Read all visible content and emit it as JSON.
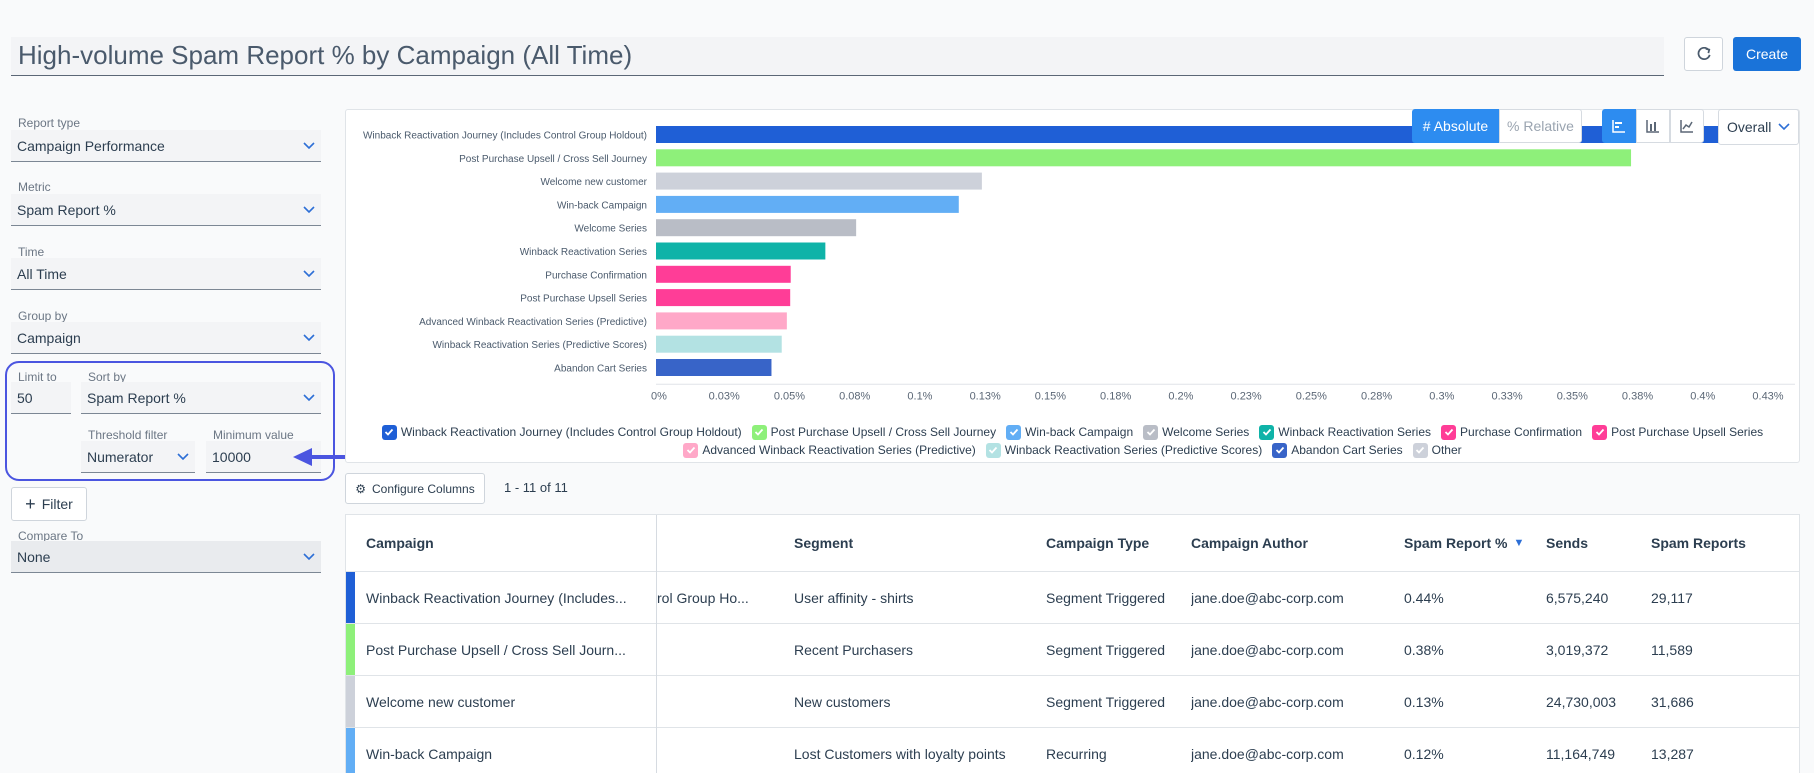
{
  "header": {
    "title": "High-volume Spam Report % by Campaign (All Time)",
    "create_label": "Create"
  },
  "left_panel": {
    "report_type": {
      "label": "Report type",
      "value": "Campaign Performance"
    },
    "metric": {
      "label": "Metric",
      "value": "Spam Report %"
    },
    "time": {
      "label": "Time",
      "value": "All Time"
    },
    "group_by": {
      "label": "Group by",
      "value": "Campaign"
    },
    "limit": {
      "label": "Limit to",
      "value": "50"
    },
    "sort_by": {
      "label": "Sort by",
      "value": "Spam Report %"
    },
    "threshold": {
      "label": "Threshold filter",
      "value": "Numerator"
    },
    "minimum": {
      "label": "Minimum value",
      "value": "10000"
    },
    "filter_label": "Filter",
    "compare": {
      "label": "Compare To",
      "value": "None"
    }
  },
  "chart_controls": {
    "absolute_label": "# Absolute",
    "relative_label": "% Relative",
    "aggregation": "Overall",
    "active_view": "horizontal-bar"
  },
  "chart_data": {
    "type": "bar",
    "orientation": "horizontal",
    "categories": [
      "Winback Reactivation Journey (Includes Control Group Holdout)",
      "Post Purchase Upsell / Cross Sell Journey",
      "Welcome new customer",
      "Win-back Campaign",
      "Welcome Series",
      "Winback Reactivation Series",
      "Purchase Confirmation",
      "Post Purchase Upsell Series",
      "Advanced Winback Reactivation Series (Predictive)",
      "Winback Reactivation Series (Predictive Scores)",
      "Abandon Cart Series"
    ],
    "values": [
      0.44,
      0.38,
      0.127,
      0.118,
      0.078,
      0.066,
      0.0525,
      0.0523,
      0.051,
      0.049,
      0.045
    ],
    "colors": [
      "#1f5fd6",
      "#8ef07a",
      "#cdd1da",
      "#62aef5",
      "#b9bdc6",
      "#0fb3a8",
      "#ff3d97",
      "#ff3d97",
      "#ffa8c8",
      "#b3e2e3",
      "#3864c8"
    ],
    "xticks": [
      "0%",
      "0.03%",
      "0.05%",
      "0.08%",
      "0.1%",
      "0.13%",
      "0.15%",
      "0.18%",
      "0.2%",
      "0.23%",
      "0.25%",
      "0.28%",
      "0.3%",
      "0.33%",
      "0.35%",
      "0.38%",
      "0.4%",
      "0.43%"
    ],
    "xlim": [
      0,
      0.44
    ],
    "grid": true,
    "xlabel": "",
    "ylabel": ""
  },
  "legend": [
    {
      "label": "Winback Reactivation Journey (Includes Control Group Holdout)",
      "color": "#1f5fd6",
      "row": 1
    },
    {
      "label": "Post Purchase Upsell / Cross Sell Journey",
      "color": "#8ef07a",
      "row": 1
    },
    {
      "label": "Win-back Campaign",
      "color": "#62aef5",
      "row": 1
    },
    {
      "label": "Welcome Series",
      "color": "#b9bdc6",
      "row": 1
    },
    {
      "label": "Winback Reactivation Series",
      "color": "#0fb3a8",
      "row": 1
    },
    {
      "label": "Purchase Confirmation",
      "color": "#ff3d97",
      "row": 1
    },
    {
      "label": "Post Purchase Upsell Series",
      "color": "#ff3d97",
      "row": 1
    },
    {
      "label": "Advanced Winback Reactivation Series (Predictive)",
      "color": "#ffa8c8",
      "row": 2
    },
    {
      "label": "Winback Reactivation Series (Predictive Scores)",
      "color": "#b3e2e3",
      "row": 2
    },
    {
      "label": "Abandon Cart Series",
      "color": "#3864c8",
      "row": 2
    },
    {
      "label": "Other",
      "color": "#cdd1da",
      "row": 2
    }
  ],
  "table_controls": {
    "configure_label": "Configure Columns",
    "row_count": "1 - 11 of 11"
  },
  "table": {
    "columns": [
      "Campaign",
      "Segment",
      "Campaign Type",
      "Campaign Author",
      "Spam Report %",
      "Sends",
      "Spam Reports"
    ],
    "rows": [
      {
        "color": "#1f5fd6",
        "campaign": "Winback Reactivation Journey (Includes...",
        "overflow": "rol Group Ho...",
        "segment": "User affinity - shirts",
        "type": "Segment Triggered",
        "author": "jane.doe@abc-corp.com",
        "spam_pct": "0.44%",
        "sends": "6,575,240",
        "spam_reports": "29,117"
      },
      {
        "color": "#8ef07a",
        "campaign": "Post Purchase Upsell / Cross Sell Journ...",
        "overflow": "",
        "segment": "Recent Purchasers",
        "type": "Segment Triggered",
        "author": "jane.doe@abc-corp.com",
        "spam_pct": "0.38%",
        "sends": "3,019,372",
        "spam_reports": "11,589"
      },
      {
        "color": "#cdd1da",
        "campaign": "Welcome new customer",
        "overflow": "",
        "segment": "New customers",
        "type": "Segment Triggered",
        "author": "jane.doe@abc-corp.com",
        "spam_pct": "0.13%",
        "sends": "24,730,003",
        "spam_reports": "31,686"
      },
      {
        "color": "#62aef5",
        "campaign": "Win-back Campaign",
        "overflow": "",
        "segment": "Lost Customers with loyalty points",
        "type": "Recurring",
        "author": "jane.doe@abc-corp.com",
        "spam_pct": "0.12%",
        "sends": "11,164,749",
        "spam_reports": "13,287"
      }
    ]
  },
  "colors": {
    "accent": "#2d8cf0",
    "create": "#1a73d9",
    "annotation": "#4b55e0"
  }
}
